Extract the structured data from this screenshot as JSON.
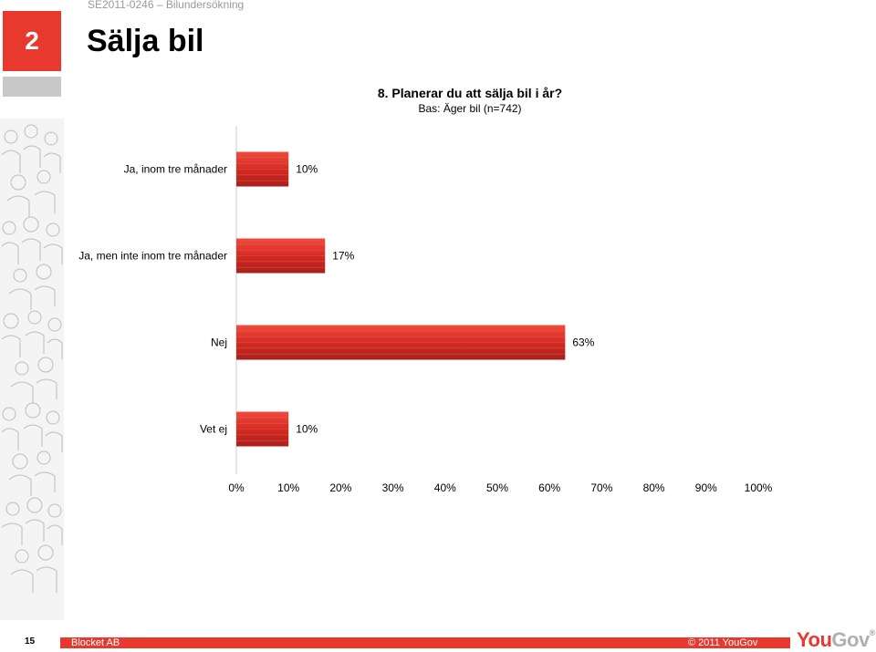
{
  "header": {
    "code": "SE2011-0246 – Bilundersökning",
    "section_number": "2",
    "title": "Sälja bil"
  },
  "chart_data": {
    "type": "bar",
    "orientation": "horizontal",
    "title": "8. Planerar du att sälja bil i år?",
    "subtitle": "Bas: Äger bil (n=742)",
    "categories": [
      "Ja, inom tre månader",
      "Ja, men inte inom tre månader",
      "Nej",
      "Vet ej"
    ],
    "values": [
      10,
      17,
      63,
      10
    ],
    "value_labels": [
      "10%",
      "17%",
      "63%",
      "10%"
    ],
    "xlim": [
      0,
      100
    ],
    "x_ticks": [
      "0%",
      "10%",
      "20%",
      "30%",
      "40%",
      "50%",
      "60%",
      "70%",
      "80%",
      "90%",
      "100%"
    ],
    "bar_color": "#d42a22",
    "grid": false,
    "legend": "none"
  },
  "footer": {
    "page_number": "15",
    "left_text": "Blocket AB",
    "right_text": "© 2011 YouGov",
    "logo_you": "You",
    "logo_gov": "Gov",
    "logo_mark": "®",
    "accent_color": "#e8392e"
  }
}
